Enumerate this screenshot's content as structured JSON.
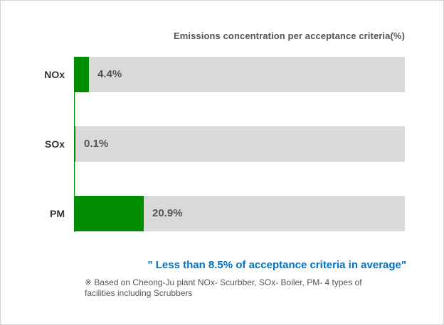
{
  "chart_data": {
    "type": "bar",
    "orientation": "horizontal",
    "title": "Emissions concentration per acceptance criteria(%)",
    "categories": [
      "NOx",
      "SOx",
      "PM"
    ],
    "values": [
      4.4,
      0.1,
      20.9
    ],
    "value_labels": [
      "4.4%",
      "0.1%",
      "20.9%"
    ],
    "xlim": [
      0,
      100
    ],
    "grid": false,
    "colors": {
      "bar": "#008c00",
      "track": "#d9d9d9"
    }
  },
  "summary": "\" Less than  8.5% of acceptance criteria in average\"",
  "footnote_line1": "※ Based on Cheong-Ju plant NOx- Scurbber, SOx- Boiler, PM- 4 types of",
  "footnote_line2": "facilities  including Scrubbers"
}
